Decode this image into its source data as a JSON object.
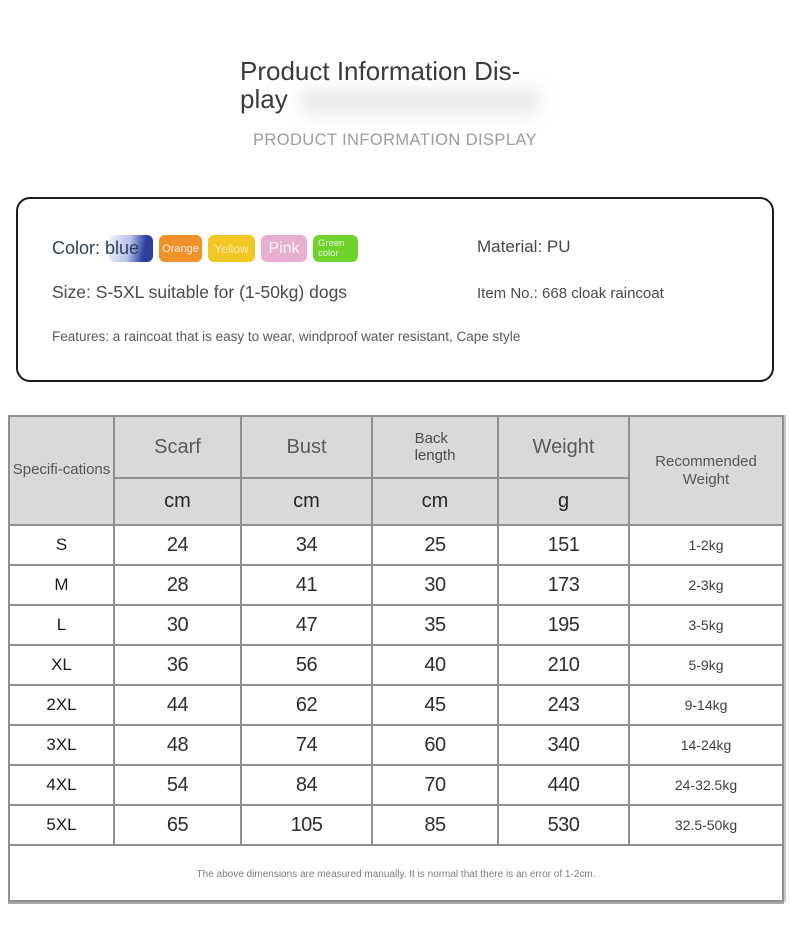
{
  "header": {
    "title": "Product Information Dis-\nplay",
    "subtitle": "PRODUCT INFORMATION DISPLAY"
  },
  "info_box": {
    "color_label": "Color: blue",
    "swatches": [
      {
        "name": "blue",
        "label": "",
        "gradient_start": "#eef1fb",
        "gradient_mid": "#b7c3ec",
        "gradient_end": "#2e3e9e"
      },
      {
        "name": "orange",
        "label": "Orange",
        "color": "#f0912c"
      },
      {
        "name": "yellow",
        "label": "Yellow",
        "color": "#f2c623"
      },
      {
        "name": "pink",
        "label": "Pink",
        "color": "#eaaed3"
      },
      {
        "name": "green",
        "label": "Green\ncolor",
        "color": "#6fd32c"
      }
    ],
    "material": "Material: PU",
    "size": "Size: S-5XL suitable for (1-50kg) dogs",
    "item_no": "Item No.: 668 cloak raincoat",
    "features": "Features: a raincoat that is easy to wear, windproof water resistant, Cape style"
  },
  "table": {
    "headers": {
      "spec": "Specifi-cations",
      "scarf": "Scarf",
      "bust": "Bust",
      "back_length": "Back\nlength",
      "weight": "Weight",
      "recommended": "Recommended Weight"
    },
    "units": [
      "cm",
      "cm",
      "cm",
      "g"
    ],
    "rows": [
      {
        "size": "S",
        "scarf": "24",
        "bust": "34",
        "back": "25",
        "weight": "151",
        "rec": "1-2kg"
      },
      {
        "size": "M",
        "scarf": "28",
        "bust": "41",
        "back": "30",
        "weight": "173",
        "rec": "2-3kg"
      },
      {
        "size": "L",
        "scarf": "30",
        "bust": "47",
        "back": "35",
        "weight": "195",
        "rec": "3-5kg"
      },
      {
        "size": "XL",
        "scarf": "36",
        "bust": "56",
        "back": "40",
        "weight": "210",
        "rec": "5-9kg"
      },
      {
        "size": "2XL",
        "scarf": "44",
        "bust": "62",
        "back": "45",
        "weight": "243",
        "rec": "9-14kg"
      },
      {
        "size": "3XL",
        "scarf": "48",
        "bust": "74",
        "back": "60",
        "weight": "340",
        "rec": "14-24kg"
      },
      {
        "size": "4XL",
        "scarf": "54",
        "bust": "84",
        "back": "70",
        "weight": "440",
        "rec": "24-32.5kg"
      },
      {
        "size": "5XL",
        "scarf": "65",
        "bust": "105",
        "back": "85",
        "weight": "530",
        "rec": "32.5-50kg"
      }
    ],
    "note": "The above dimensions are measured manually. It is normal that there is an error of 1-2cm."
  },
  "colors": {
    "table_header_bg": "#d9d9d9",
    "table_border": "#8f8f8f",
    "info_border": "#1a1a1a",
    "title_text": "#3b3b3b",
    "subtitle_text": "#9c9c9c"
  }
}
